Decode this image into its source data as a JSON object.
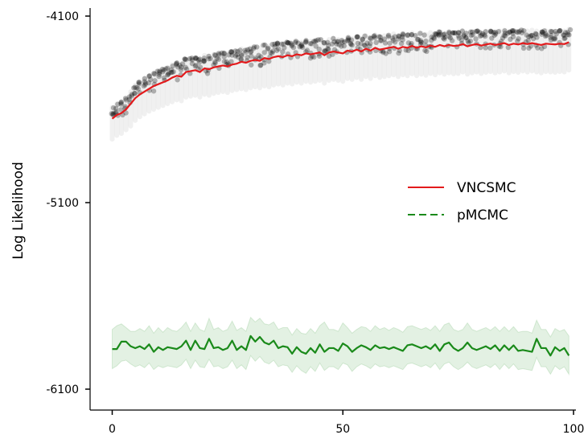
{
  "chart_data": {
    "type": "line",
    "title": "",
    "xlabel": "",
    "ylabel": "Log Likelihood",
    "xlim": [
      -5,
      100
    ],
    "ylim": [
      -6210,
      -4100
    ],
    "x_ticks": [
      0,
      50,
      100
    ],
    "y_ticks": [
      -4100,
      -5100,
      -6100
    ],
    "y_tick_labels": [
      "-4100",
      "-5100",
      "-6100"
    ],
    "grid": false,
    "legend_position": "right",
    "legend": [
      {
        "name": "VNCSMC",
        "color": "#e31a1c",
        "style": "solid"
      },
      {
        "name": "pMCMC",
        "color": "#1a8a1a",
        "style": "dashed"
      }
    ],
    "series": [
      {
        "name": "VNCSMC",
        "color": "#e31a1c",
        "x": [
          0,
          1,
          2,
          3,
          4,
          5,
          6,
          7,
          8,
          9,
          10,
          11,
          12,
          13,
          14,
          15,
          16,
          17,
          18,
          19,
          20,
          21,
          22,
          23,
          24,
          25,
          26,
          27,
          28,
          29,
          30,
          31,
          32,
          33,
          34,
          35,
          36,
          37,
          38,
          39,
          40,
          41,
          42,
          43,
          44,
          45,
          46,
          47,
          48,
          49,
          50,
          51,
          52,
          53,
          54,
          55,
          56,
          57,
          58,
          59,
          60,
          61,
          62,
          63,
          64,
          65,
          66,
          67,
          68,
          69,
          70,
          71,
          72,
          73,
          74,
          75,
          76,
          77,
          78,
          79,
          80,
          81,
          82,
          83,
          84,
          85,
          86,
          87,
          88,
          89,
          90,
          91,
          92,
          93,
          94,
          95,
          96,
          97,
          98,
          99
        ],
        "values": [
          -4650,
          -4630,
          -4620,
          -4600,
          -4570,
          -4540,
          -4520,
          -4505,
          -4490,
          -4475,
          -4465,
          -4455,
          -4445,
          -4430,
          -4420,
          -4425,
          -4400,
          -4395,
          -4390,
          -4400,
          -4380,
          -4385,
          -4375,
          -4370,
          -4365,
          -4370,
          -4360,
          -4355,
          -4345,
          -4350,
          -4340,
          -4335,
          -4340,
          -4325,
          -4330,
          -4320,
          -4315,
          -4320,
          -4310,
          -4315,
          -4305,
          -4310,
          -4300,
          -4305,
          -4300,
          -4295,
          -4310,
          -4295,
          -4290,
          -4295,
          -4300,
          -4285,
          -4290,
          -4280,
          -4290,
          -4275,
          -4285,
          -4270,
          -4280,
          -4275,
          -4270,
          -4265,
          -4275,
          -4265,
          -4270,
          -4260,
          -4270,
          -4262,
          -4268,
          -4258,
          -4265,
          -4255,
          -4262,
          -4255,
          -4260,
          -4258,
          -4250,
          -4262,
          -4255,
          -4250,
          -4258,
          -4252,
          -4248,
          -4255,
          -4250,
          -4245,
          -4255,
          -4248,
          -4252,
          -4245,
          -4250,
          -4245,
          -4250,
          -4255,
          -4248,
          -4250,
          -4252,
          -4248,
          -4250,
          -4240
        ],
        "cloud_upper": [
          -4590,
          -4570,
          -4560,
          -4540,
          -4505,
          -4470,
          -4450,
          -4435,
          -4420,
          -4405,
          -4395,
          -4385,
          -4375,
          -4360,
          -4350,
          -4355,
          -4330,
          -4325,
          -4320,
          -4330,
          -4310,
          -4315,
          -4305,
          -4300,
          -4295,
          -4300,
          -4290,
          -4285,
          -4275,
          -4280,
          -4270,
          -4265,
          -4270,
          -4255,
          -4260,
          -4250,
          -4245,
          -4250,
          -4240,
          -4245,
          -4235,
          -4240,
          -4230,
          -4235,
          -4230,
          -4225,
          -4240,
          -4225,
          -4220,
          -4225,
          -4230,
          -4215,
          -4220,
          -4210,
          -4220,
          -4205,
          -4215,
          -4200,
          -4210,
          -4205,
          -4200,
          -4195,
          -4205,
          -4195,
          -4200,
          -4190,
          -4200,
          -4192,
          -4198,
          -4188,
          -4195,
          -4185,
          -4192,
          -4185,
          -4190,
          -4188,
          -4180,
          -4192,
          -4185,
          -4180,
          -4188,
          -4182,
          -4178,
          -4185,
          -4180,
          -4175,
          -4185,
          -4178,
          -4182,
          -4175,
          -4180,
          -4175,
          -4180,
          -4185,
          -4178,
          -4180,
          -4182,
          -4178,
          -4180,
          -4170
        ],
        "cloud_lower": [
          -4760,
          -4740,
          -4730,
          -4710,
          -4690,
          -4660,
          -4640,
          -4625,
          -4610,
          -4600,
          -4590,
          -4580,
          -4570,
          -4560,
          -4550,
          -4555,
          -4535,
          -4530,
          -4525,
          -4535,
          -4520,
          -4525,
          -4515,
          -4510,
          -4505,
          -4510,
          -4500,
          -4495,
          -4490,
          -4495,
          -4485,
          -4480,
          -4485,
          -4475,
          -4480,
          -4470,
          -4465,
          -4470,
          -4460,
          -4465,
          -4455,
          -4460,
          -4450,
          -4455,
          -4450,
          -4445,
          -4460,
          -4445,
          -4440,
          -4445,
          -4450,
          -4435,
          -4440,
          -4430,
          -4440,
          -4425,
          -4435,
          -4420,
          -4430,
          -4425,
          -4420,
          -4415,
          -4425,
          -4415,
          -4420,
          -4410,
          -4420,
          -4412,
          -4418,
          -4408,
          -4415,
          -4405,
          -4412,
          -4405,
          -4410,
          -4408,
          -4400,
          -4412,
          -4405,
          -4400,
          -4408,
          -4402,
          -4398,
          -4405,
          -4400,
          -4395,
          -4405,
          -4398,
          -4402,
          -4395,
          -4400,
          -4395,
          -4400,
          -4405,
          -4398,
          -4400,
          -4402,
          -4398,
          -4400,
          -4390
        ]
      },
      {
        "name": "pMCMC",
        "color": "#1a8a1a",
        "x": [
          0,
          1,
          2,
          3,
          4,
          5,
          6,
          7,
          8,
          9,
          10,
          11,
          12,
          13,
          14,
          15,
          16,
          17,
          18,
          19,
          20,
          21,
          22,
          23,
          24,
          25,
          26,
          27,
          28,
          29,
          30,
          31,
          32,
          33,
          34,
          35,
          36,
          37,
          38,
          39,
          40,
          41,
          42,
          43,
          44,
          45,
          46,
          47,
          48,
          49,
          50,
          51,
          52,
          53,
          54,
          55,
          56,
          57,
          58,
          59,
          60,
          61,
          62,
          63,
          64,
          65,
          66,
          67,
          68,
          69,
          70,
          71,
          72,
          73,
          74,
          75,
          76,
          77,
          78,
          79,
          80,
          81,
          82,
          83,
          84,
          85,
          86,
          87,
          88,
          89,
          90,
          91,
          92,
          93,
          94,
          95,
          96,
          97,
          98,
          99
        ],
        "values": [
          -5885,
          -5885,
          -5845,
          -5845,
          -5870,
          -5880,
          -5870,
          -5885,
          -5860,
          -5900,
          -5875,
          -5890,
          -5875,
          -5880,
          -5885,
          -5870,
          -5840,
          -5890,
          -5840,
          -5880,
          -5885,
          -5830,
          -5880,
          -5875,
          -5890,
          -5880,
          -5840,
          -5890,
          -5870,
          -5890,
          -5815,
          -5845,
          -5820,
          -5850,
          -5860,
          -5840,
          -5880,
          -5870,
          -5875,
          -5910,
          -5875,
          -5900,
          -5910,
          -5880,
          -5905,
          -5860,
          -5900,
          -5880,
          -5880,
          -5895,
          -5855,
          -5870,
          -5900,
          -5880,
          -5865,
          -5875,
          -5890,
          -5865,
          -5880,
          -5875,
          -5885,
          -5875,
          -5885,
          -5895,
          -5865,
          -5860,
          -5870,
          -5880,
          -5870,
          -5885,
          -5860,
          -5895,
          -5860,
          -5850,
          -5880,
          -5895,
          -5880,
          -5850,
          -5880,
          -5890,
          -5880,
          -5870,
          -5885,
          -5865,
          -5895,
          -5865,
          -5890,
          -5865,
          -5895,
          -5890,
          -5895,
          -5900,
          -5830,
          -5880,
          -5880,
          -5920,
          -5875,
          -5895,
          -5880,
          -5920
        ],
        "band_upper": [
          -5780,
          -5760,
          -5750,
          -5770,
          -5790,
          -5790,
          -5775,
          -5790,
          -5760,
          -5800,
          -5770,
          -5795,
          -5770,
          -5785,
          -5790,
          -5770,
          -5740,
          -5790,
          -5745,
          -5780,
          -5790,
          -5720,
          -5780,
          -5770,
          -5790,
          -5780,
          -5735,
          -5785,
          -5770,
          -5790,
          -5715,
          -5740,
          -5720,
          -5750,
          -5755,
          -5740,
          -5780,
          -5770,
          -5770,
          -5810,
          -5775,
          -5800,
          -5805,
          -5775,
          -5800,
          -5760,
          -5740,
          -5780,
          -5780,
          -5790,
          -5745,
          -5770,
          -5800,
          -5780,
          -5765,
          -5770,
          -5790,
          -5760,
          -5780,
          -5770,
          -5785,
          -5770,
          -5780,
          -5795,
          -5765,
          -5760,
          -5770,
          -5780,
          -5770,
          -5785,
          -5760,
          -5790,
          -5755,
          -5745,
          -5780,
          -5790,
          -5780,
          -5745,
          -5780,
          -5790,
          -5780,
          -5770,
          -5785,
          -5765,
          -5790,
          -5765,
          -5790,
          -5765,
          -5795,
          -5790,
          -5790,
          -5800,
          -5730,
          -5780,
          -5780,
          -5820,
          -5775,
          -5790,
          -5780,
          -5815
        ],
        "band_lower": [
          -5990,
          -5975,
          -5950,
          -5945,
          -5965,
          -5980,
          -5970,
          -5985,
          -5960,
          -5995,
          -5975,
          -5985,
          -5975,
          -5980,
          -5985,
          -5970,
          -5940,
          -5990,
          -5945,
          -5980,
          -5985,
          -5940,
          -5980,
          -5975,
          -5990,
          -5980,
          -5945,
          -5990,
          -5970,
          -5995,
          -5920,
          -5950,
          -5925,
          -5955,
          -5965,
          -5945,
          -5980,
          -5970,
          -5975,
          -6010,
          -5975,
          -6000,
          -6015,
          -5980,
          -6005,
          -5960,
          -6000,
          -5980,
          -5980,
          -5995,
          -5960,
          -5970,
          -6005,
          -5980,
          -5965,
          -5975,
          -5990,
          -5965,
          -5980,
          -5975,
          -5985,
          -5975,
          -5985,
          -5995,
          -5965,
          -5960,
          -5970,
          -5980,
          -5970,
          -5985,
          -5960,
          -5995,
          -5965,
          -5955,
          -5980,
          -5995,
          -5980,
          -5955,
          -5980,
          -5990,
          -5980,
          -5970,
          -5985,
          -5965,
          -5995,
          -5965,
          -5990,
          -5965,
          -5995,
          -5990,
          -5995,
          -6000,
          -5930,
          -5980,
          -5980,
          -6020,
          -5975,
          -5995,
          -5980,
          -6020
        ]
      }
    ]
  }
}
